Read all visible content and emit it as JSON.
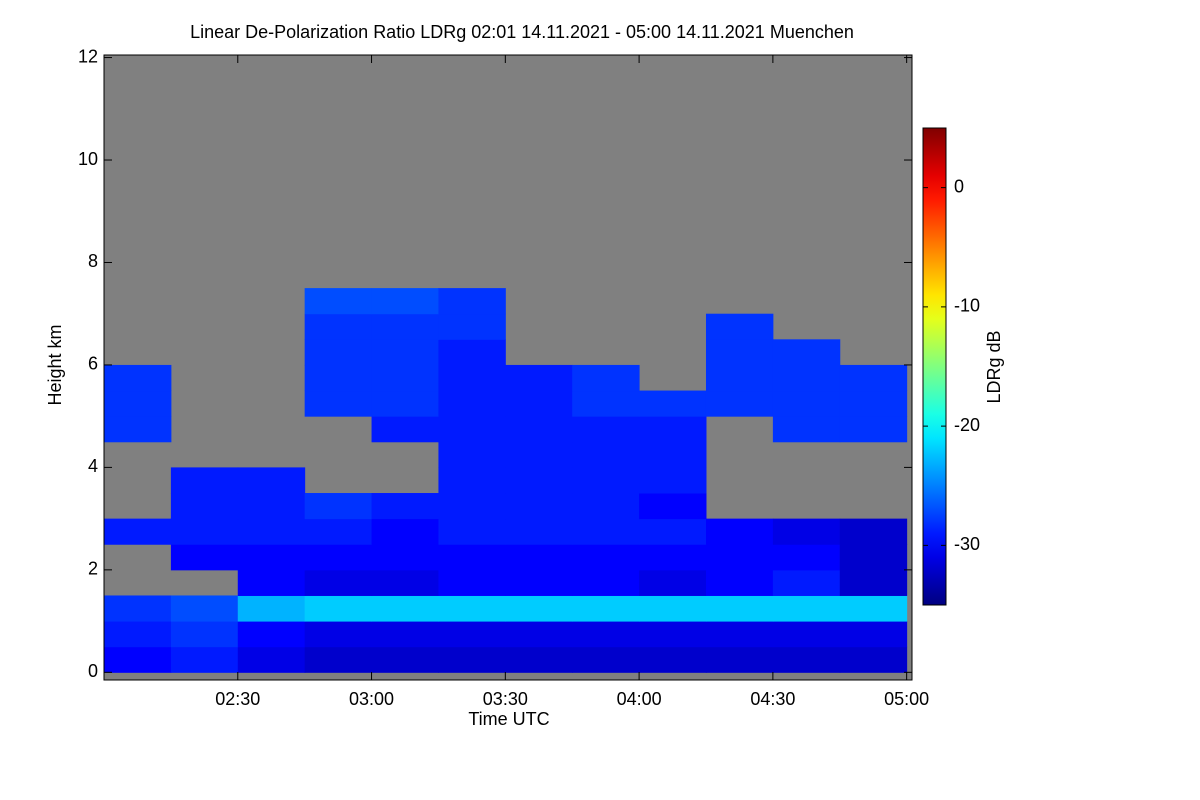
{
  "chart_data": {
    "type": "heatmap",
    "title": "Linear De-Polarization Ratio LDRg   02:01 14.11.2021 - 05:00 14.11.2021 Muenchen",
    "x_label": "Time UTC",
    "y_label": "Height km",
    "colorbar_label": "LDRg dB",
    "colormap": "jet",
    "no_data_color": "#808080",
    "xlim": [
      2.0,
      5.02
    ],
    "xticks": [
      {
        "value": 2.5,
        "label": "02:30"
      },
      {
        "value": 3.0,
        "label": "03:00"
      },
      {
        "value": 3.5,
        "label": "03:30"
      },
      {
        "value": 4.0,
        "label": "04:00"
      },
      {
        "value": 4.5,
        "label": "04:30"
      },
      {
        "value": 5.0,
        "label": "05:00"
      }
    ],
    "ylim": [
      -0.15,
      12.05
    ],
    "yticks": [
      0,
      2,
      4,
      6,
      8,
      10,
      12
    ],
    "zlim": [
      -35,
      5
    ],
    "zticks": [
      -30,
      -20,
      -10,
      0
    ],
    "x_edges": [
      2.0,
      2.25,
      2.5,
      2.75,
      3.0,
      3.25,
      3.5,
      3.75,
      4.0,
      4.25,
      4.5,
      4.75,
      5.0
    ],
    "y_edges": [
      0,
      0.5,
      1.0,
      1.5,
      2.0,
      2.5,
      3.0,
      3.5,
      4.0,
      4.5,
      5.0,
      5.5,
      6.0,
      6.5,
      7.0,
      7.5,
      8.0
    ],
    "z": [
      [
        -30,
        -29,
        -31,
        -32,
        -32,
        -32,
        -32,
        -32,
        -32,
        -32,
        -32,
        -32
      ],
      [
        -29,
        -28,
        -30,
        -31,
        -31,
        -31,
        -31,
        -31,
        -31,
        -31,
        -31,
        -31
      ],
      [
        -28,
        -27,
        -23,
        -22,
        -22,
        -22,
        -22,
        -22,
        -22,
        -22,
        -22,
        -22
      ],
      [
        null,
        null,
        -30,
        -31,
        -31,
        -30,
        -30,
        -30,
        -31,
        -30,
        -29,
        -32
      ],
      [
        null,
        -30,
        -30,
        -30,
        -30,
        -30,
        -30,
        -30,
        -30,
        -30,
        -30,
        -32
      ],
      [
        -29,
        -29,
        -29,
        -29,
        -30,
        -29,
        -29,
        -29,
        -29,
        -30,
        -31,
        -32
      ],
      [
        null,
        -29,
        -29,
        -28,
        -29,
        -29,
        -29,
        -29,
        -30,
        null,
        null,
        null
      ],
      [
        null,
        -29,
        -29,
        null,
        null,
        -29,
        -29,
        -29,
        -29,
        null,
        null,
        null
      ],
      [
        null,
        null,
        null,
        null,
        null,
        -29,
        -29,
        -29,
        -29,
        null,
        null,
        null
      ],
      [
        -28,
        null,
        null,
        null,
        -29,
        -29,
        -29,
        -29,
        -29,
        null,
        -28,
        -28
      ],
      [
        -28,
        null,
        null,
        -28,
        -28,
        -29,
        -29,
        -28,
        -28,
        -28,
        -28,
        -28
      ],
      [
        -28,
        null,
        null,
        -28,
        -28,
        -29,
        -29,
        -28,
        null,
        -28,
        -28,
        -28
      ],
      [
        null,
        null,
        null,
        -28,
        -28,
        -29,
        null,
        null,
        null,
        -28,
        -28,
        null
      ],
      [
        null,
        null,
        null,
        -28,
        -28,
        -28,
        null,
        null,
        null,
        -28,
        null,
        null
      ],
      [
        null,
        null,
        null,
        -27,
        -27,
        -28,
        null,
        null,
        null,
        null,
        null,
        null
      ],
      [
        null,
        null,
        null,
        null,
        null,
        null,
        null,
        null,
        null,
        null,
        null,
        null
      ]
    ]
  }
}
